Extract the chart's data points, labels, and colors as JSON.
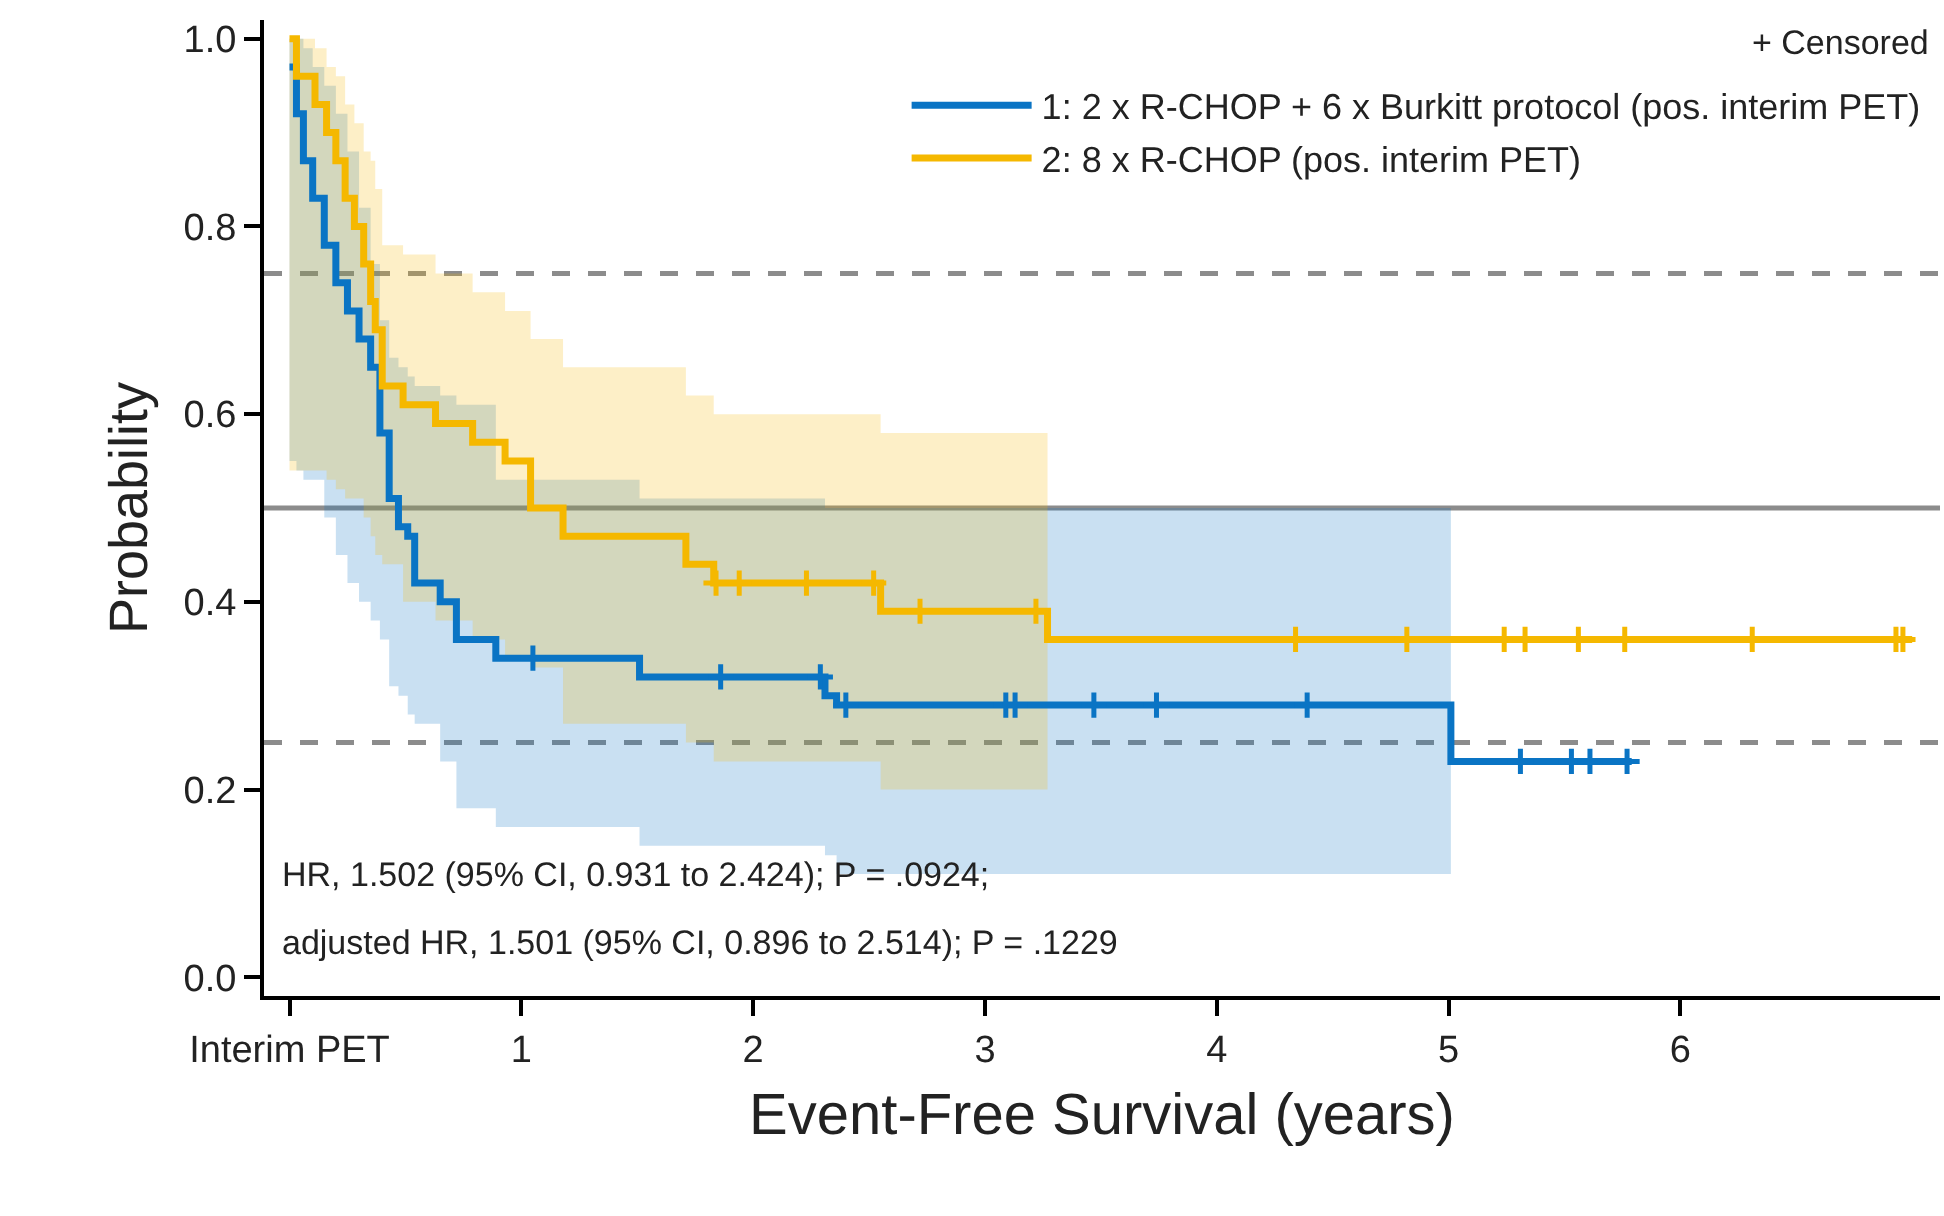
{
  "chart_data": {
    "type": "step",
    "xlabel": "Event-Free Survival (years)",
    "ylabel": "Probability",
    "xlim": [
      -0.11,
      7.12
    ],
    "ylim": [
      -0.02,
      1.02
    ],
    "xticks": [
      {
        "value": 0,
        "label": "Interim PET"
      },
      1,
      2,
      3,
      4,
      5,
      6
    ],
    "yticks": [
      {
        "value": 0,
        "label": "0.0"
      },
      {
        "value": 0.2,
        "label": "0.2"
      },
      {
        "value": 0.4,
        "label": "0.4"
      },
      {
        "value": 0.6,
        "label": "0.6"
      },
      {
        "value": 0.8,
        "label": "0.8"
      },
      {
        "value": 1,
        "label": "1.0"
      }
    ],
    "grid": false,
    "legend": "top right",
    "ref_lines": [
      {
        "axis": "y",
        "value": 0.75,
        "color": "#8c8c8c",
        "line_style": "dashed"
      },
      {
        "axis": "y",
        "value": 0.5,
        "color": "#8c8c8c",
        "line_style": "solid"
      },
      {
        "axis": "y",
        "value": 0.25,
        "color": "#8c8c8c",
        "line_style": "dashed"
      }
    ],
    "annotations": [
      "+ Censored",
      "HR, 1.502 (95% CI, 0.931 to 2.424); P = .0924;",
      "adjusted HR, 1.501 (95% CI, 0.896 to 2.514); P = .1229"
    ],
    "series": [
      {
        "name": "1: 2 x R-CHOP + 6 x Burkitt protocol (pos. interim PET)",
        "color": "#0a74c4",
        "line_style": "solid",
        "x": [
          0,
          0.03,
          0.06,
          0.1,
          0.15,
          0.2,
          0.25,
          0.3,
          0.35,
          0.39,
          0.43,
          0.47,
          0.51,
          0.54,
          0.65,
          0.72,
          0.89,
          1.51,
          2.31,
          2.36,
          5.01,
          5.79
        ],
        "values": [
          0.97,
          0.92,
          0.87,
          0.83,
          0.78,
          0.74,
          0.71,
          0.68,
          0.65,
          0.58,
          0.51,
          0.48,
          0.47,
          0.42,
          0.4,
          0.36,
          0.34,
          0.32,
          0.3,
          0.29,
          0.23,
          0.23
        ],
        "upper": [
          1.0,
          1.0,
          0.99,
          0.97,
          0.95,
          0.92,
          0.88,
          0.82,
          0.76,
          0.7,
          0.66,
          0.65,
          0.64,
          0.63,
          0.62,
          0.61,
          0.53,
          0.51,
          0.5,
          0.5,
          0.5,
          null
        ],
        "lower": [
          0.55,
          0.54,
          0.53,
          0.53,
          0.49,
          0.45,
          0.42,
          0.4,
          0.38,
          0.36,
          0.31,
          0.3,
          0.28,
          0.27,
          0.23,
          0.18,
          0.16,
          0.14,
          0.13,
          0.11,
          0.11,
          null
        ]
      },
      {
        "name": "2: 8 x R-CHOP (pos. interim PET)",
        "color": "#f5b800",
        "line_style": "solid",
        "x": [
          0,
          0.03,
          0.11,
          0.16,
          0.2,
          0.24,
          0.28,
          0.32,
          0.35,
          0.37,
          0.4,
          0.49,
          0.63,
          0.79,
          0.93,
          1.04,
          1.18,
          1.71,
          1.83,
          2.55,
          3.27,
          7.0
        ],
        "values": [
          1.0,
          0.96,
          0.93,
          0.9,
          0.87,
          0.83,
          0.8,
          0.76,
          0.72,
          0.69,
          0.63,
          0.61,
          0.59,
          0.57,
          0.55,
          0.5,
          0.47,
          0.44,
          0.42,
          0.39,
          0.36,
          0.36
        ],
        "upper": [
          1.0,
          1.0,
          0.99,
          0.97,
          0.96,
          0.93,
          0.91,
          0.88,
          0.87,
          0.84,
          0.78,
          0.77,
          0.75,
          0.73,
          0.71,
          0.68,
          0.65,
          0.62,
          0.6,
          0.58,
          0.58,
          null
        ],
        "lower": [
          0.54,
          0.54,
          0.54,
          0.53,
          0.52,
          0.51,
          0.51,
          0.49,
          0.47,
          0.45,
          0.44,
          0.4,
          0.38,
          0.36,
          0.34,
          0.33,
          0.27,
          0.25,
          0.23,
          0.2,
          0.2,
          null
        ]
      },
      {
        "type": "scatter",
        "color": "#0a74c4",
        "marker": "cross",
        "x": [
          1.05,
          1.86,
          2.29,
          2.4,
          3.09,
          3.13,
          3.47,
          3.74,
          4.39,
          5.31,
          5.53,
          5.61,
          5.77
        ],
        "values": [
          0.34,
          0.32,
          0.32,
          0.29,
          0.29,
          0.29,
          0.29,
          0.29,
          0.29,
          0.23,
          0.23,
          0.23,
          0.23
        ]
      },
      {
        "type": "scatter",
        "color": "#f5b800",
        "marker": "cross",
        "x": [
          1.84,
          1.94,
          2.23,
          2.52,
          2.72,
          3.22,
          4.34,
          4.82,
          5.24,
          5.33,
          5.56,
          5.76,
          6.31,
          6.93,
          6.96
        ],
        "values": [
          0.42,
          0.42,
          0.42,
          0.42,
          0.39,
          0.39,
          0.36,
          0.36,
          0.36,
          0.36,
          0.36,
          0.36,
          0.36,
          0.36,
          0.36
        ]
      }
    ]
  }
}
